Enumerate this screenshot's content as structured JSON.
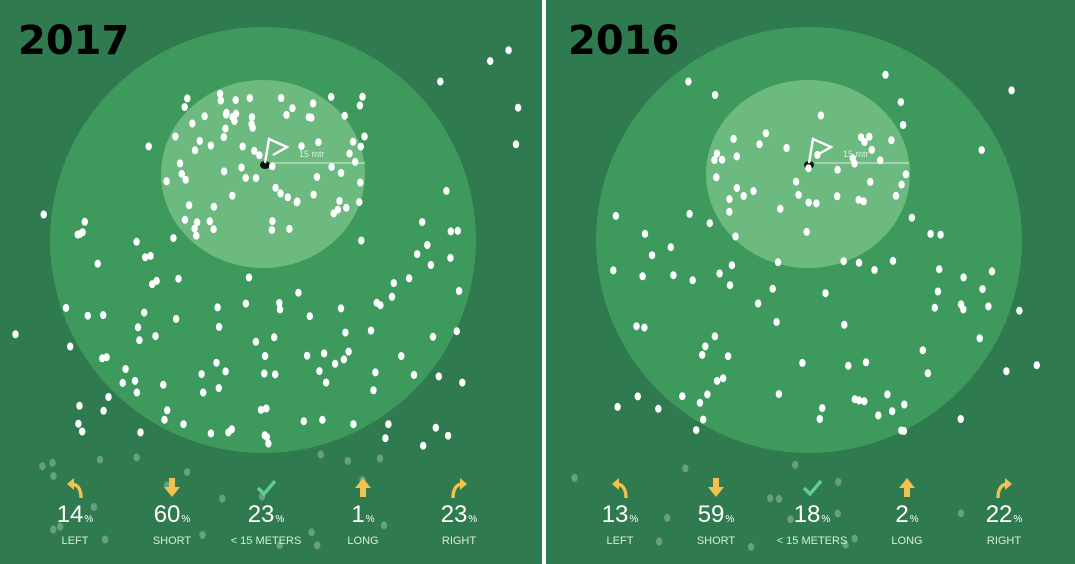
{
  "colors": {
    "panel_bg": "#2f7a4e",
    "green_zone": "#3d9a5c",
    "inner_zone": "#6cba7f",
    "shot_dot": "#ffffff",
    "arrow_gold": "#f2c14e",
    "check_green": "#5fcf8f",
    "label_text": "#d7ecd9"
  },
  "icons": {
    "left": "arrow-curve-left-icon",
    "short": "arrow-down-icon",
    "within": "checkmark-icon",
    "long": "arrow-up-icon",
    "right": "arrow-curve-right-icon"
  },
  "flag_label": "15 mtr",
  "chart_data": [
    {
      "type": "scatter",
      "title": "2017",
      "stats": [
        {
          "key": "left",
          "value": 14,
          "unit": "%",
          "label": "LEFT"
        },
        {
          "key": "short",
          "value": 60,
          "unit": "%",
          "label": "SHORT"
        },
        {
          "key": "within",
          "value": 23,
          "unit": "%",
          "label": "< 15 METERS"
        },
        {
          "key": "long",
          "value": 1,
          "unit": "%",
          "label": "LONG"
        },
        {
          "key": "right",
          "value": 23,
          "unit": "%",
          "label": "RIGHT"
        }
      ]
    },
    {
      "type": "scatter",
      "title": "2016",
      "stats": [
        {
          "key": "left",
          "value": 13,
          "unit": "%",
          "label": "LEFT"
        },
        {
          "key": "short",
          "value": 59,
          "unit": "%",
          "label": "SHORT"
        },
        {
          "key": "within",
          "value": 18,
          "unit": "%",
          "label": "< 15 METERS"
        },
        {
          "key": "long",
          "value": 2,
          "unit": "%",
          "label": "LONG"
        },
        {
          "key": "right",
          "value": 22,
          "unit": "%",
          "label": "RIGHT"
        }
      ]
    }
  ]
}
